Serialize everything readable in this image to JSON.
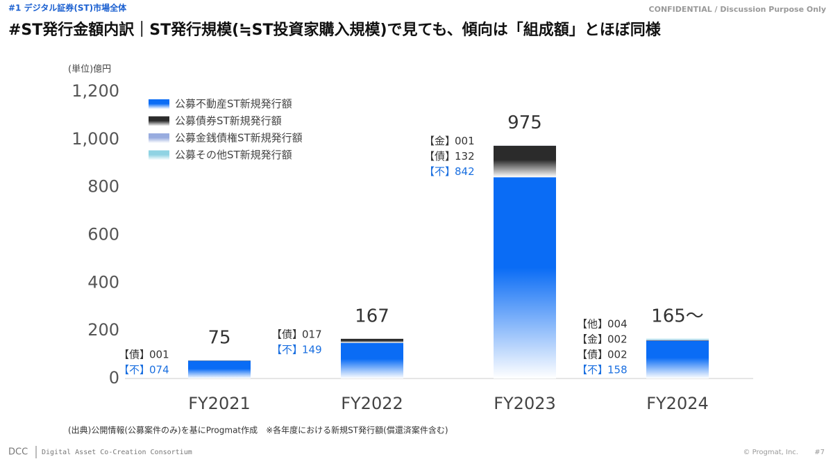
{
  "header": {
    "section": "#1 デジタル証券(ST)市場全体",
    "title": "#ST発行金額内訳｜ST発行規模(≒ST投資家購入規模)で見ても、傾向は「組成額」とほぼ同様",
    "confidential": "CONFIDENTIAL / Discussion Purpose Only"
  },
  "chart_data": {
    "type": "stacked_bar",
    "unit_label": "(単位)億円",
    "categories": [
      "FY2021",
      "FY2022",
      "FY2023",
      "FY2024"
    ],
    "series": [
      {
        "name": "公募不動産ST新規発行額",
        "tag": "【不】",
        "color": "#0a6cf5",
        "label_color": "#1a6fe0",
        "values": [
          74,
          149,
          842,
          158
        ],
        "value_labels": [
          "074",
          "149",
          "842",
          "158"
        ]
      },
      {
        "name": "公募債券ST新規発行額",
        "tag": "【債】",
        "color": "#2b2b2b",
        "label_color": "#333333",
        "values": [
          1,
          17,
          132,
          2
        ],
        "value_labels": [
          "001",
          "017",
          "132",
          "002"
        ]
      },
      {
        "name": "公募金銭債権ST新規発行額",
        "tag": "【金】",
        "color": "#98acdf",
        "label_color": "#333333",
        "values": [
          null,
          null,
          1,
          2
        ],
        "value_labels": [
          null,
          null,
          "001",
          "002"
        ]
      },
      {
        "name": "公募その他ST新規発行額",
        "tag": "【他】",
        "color": "#8fd3e3",
        "label_color": "#333333",
        "values": [
          null,
          null,
          null,
          4
        ],
        "value_labels": [
          null,
          null,
          null,
          "004"
        ]
      }
    ],
    "totals": [
      75,
      167,
      975,
      165
    ],
    "total_labels": [
      "75",
      "167",
      "975",
      "165～"
    ],
    "ylim": [
      0,
      1200
    ],
    "yticks": [
      0,
      200,
      400,
      600,
      800,
      {
        "value": 1000,
        "label": "1,000"
      },
      {
        "value": 1200,
        "label": "1,200"
      }
    ],
    "grid": false,
    "legend": "upper left",
    "source": "(出典)公開情報(公募案件のみ)を基にProgmat作成　※各年度における新規ST発行額(償還済案件含む)"
  },
  "footer": {
    "logo": "DCC",
    "org": "Digital Asset Co-Creation Consortium",
    "copyright": "© Progmat, Inc.",
    "page": "#7"
  }
}
